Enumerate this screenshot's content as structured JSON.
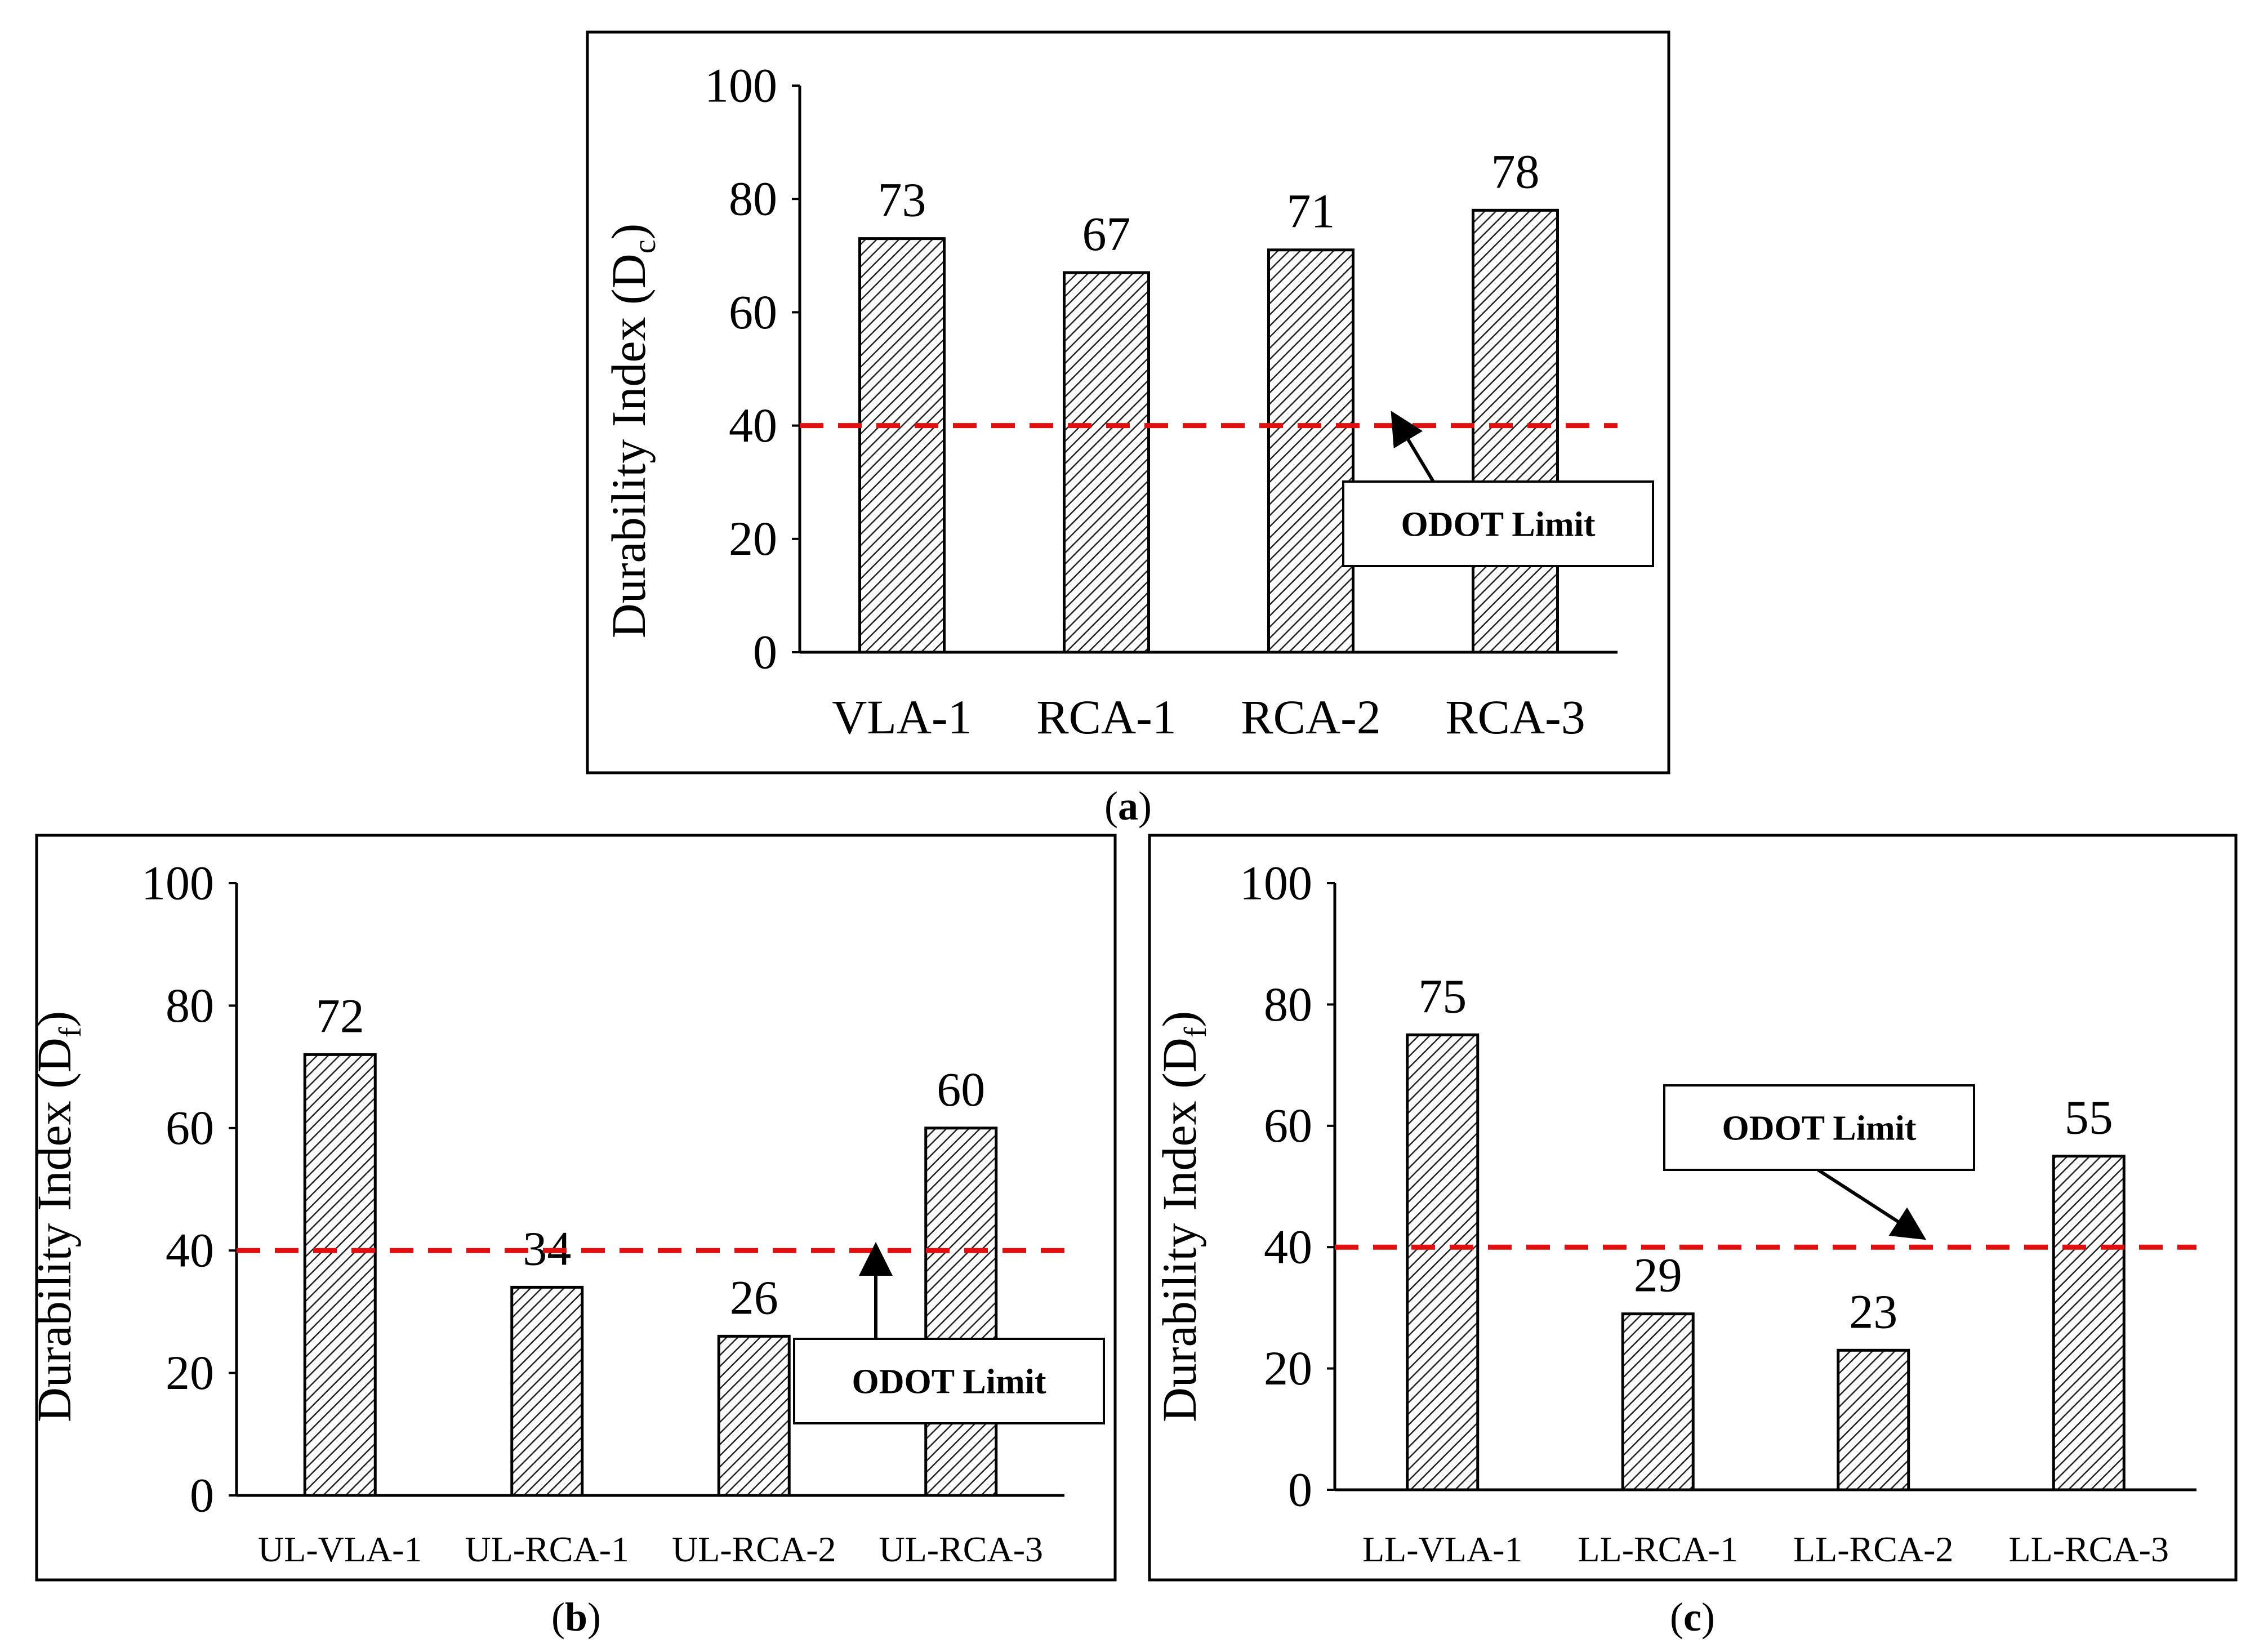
{
  "odot_limit_value": 40,
  "limit_color": "#e01010",
  "bar_fill": "#ffffff",
  "bar_hatch_color": "#222222",
  "chart_data": [
    {
      "id": "a",
      "type": "bar",
      "caption_letter": "a",
      "title": "",
      "ylabel_main": "Durability Index (D",
      "ylabel_sub": "c",
      "xlabel": "",
      "categories": [
        "VLA-1",
        "RCA-1",
        "RCA-2",
        "RCA-3"
      ],
      "values": [
        73,
        67,
        71,
        78
      ],
      "value_labels": [
        "73",
        "67",
        "71",
        "78"
      ],
      "yticks": [
        "0",
        "20",
        "40",
        "60",
        "80",
        "100"
      ],
      "ylim": [
        0,
        100
      ],
      "limit_label": "ODOT Limit",
      "grid": false
    },
    {
      "id": "b",
      "type": "bar",
      "caption_letter": "b",
      "title": "",
      "ylabel_main": "Durability Index (D",
      "ylabel_sub": "f",
      "xlabel": "",
      "categories": [
        "UL-VLA-1",
        "UL-RCA-1",
        "UL-RCA-2",
        "UL-RCA-3"
      ],
      "values": [
        72,
        34,
        26,
        60
      ],
      "value_labels": [
        "72",
        "34",
        "26",
        "60"
      ],
      "yticks": [
        "0",
        "20",
        "40",
        "60",
        "80",
        "100"
      ],
      "ylim": [
        0,
        100
      ],
      "limit_label": "ODOT Limit",
      "grid": false
    },
    {
      "id": "c",
      "type": "bar",
      "caption_letter": "c",
      "title": "",
      "ylabel_main": "Durability Index  (D",
      "ylabel_sub": "f",
      "xlabel": "",
      "categories": [
        "LL-VLA-1",
        "LL-RCA-1",
        "LL-RCA-2",
        "LL-RCA-3"
      ],
      "values": [
        75,
        29,
        23,
        55
      ],
      "value_labels": [
        "75",
        "29",
        "23",
        "55"
      ],
      "yticks": [
        "0",
        "20",
        "40",
        "60",
        "80",
        "100"
      ],
      "ylim": [
        0,
        100
      ],
      "limit_label": "ODOT Limit",
      "grid": false
    }
  ]
}
